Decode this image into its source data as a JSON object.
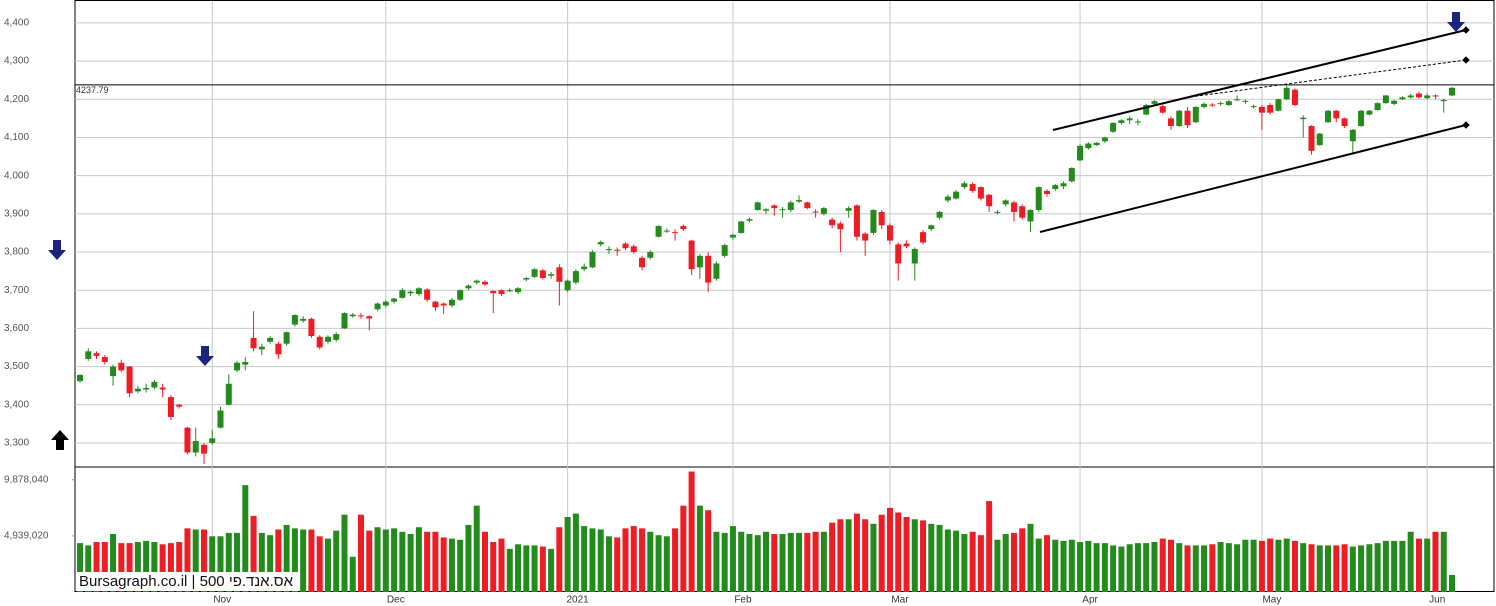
{
  "chart_data": {
    "type": "candlestick",
    "watermark": "Bursagraph.co.il | אס.אנד.פי 500",
    "categories": [
      null,
      null,
      null,
      null,
      null,
      null,
      null,
      null,
      null,
      null,
      null,
      null,
      null,
      null,
      null,
      null,
      "Nov",
      null,
      null,
      null,
      null,
      null,
      null,
      null,
      null,
      null,
      null,
      null,
      null,
      null,
      null,
      null,
      null,
      null,
      null,
      null,
      null,
      "Dec",
      null,
      null,
      null,
      null,
      null,
      null,
      null,
      null,
      null,
      null,
      null,
      null,
      null,
      null,
      null,
      null,
      null,
      null,
      null,
      null,
      null,
      "2021",
      null,
      null,
      null,
      null,
      null,
      null,
      null,
      null,
      null,
      null,
      null,
      null,
      null,
      null,
      null,
      null,
      null,
      null,
      null,
      "Feb",
      null,
      null,
      null,
      null,
      null,
      null,
      null,
      null,
      null,
      null,
      null,
      null,
      null,
      null,
      null,
      null,
      null,
      null,
      "Mar",
      null,
      null,
      null,
      null,
      null,
      null,
      null,
      null,
      null,
      null,
      null,
      null,
      null,
      null,
      null,
      null,
      null,
      null,
      null,
      null,
      null,
      null,
      "Apr",
      null,
      null,
      null,
      null,
      null,
      null,
      null,
      null,
      null,
      null,
      null,
      null,
      null,
      null,
      null,
      null,
      null,
      null,
      null,
      null,
      null,
      "May",
      null,
      null,
      null,
      null,
      null,
      null,
      null,
      null,
      null,
      null,
      null,
      null,
      null,
      null,
      null,
      null,
      null,
      null,
      null,
      "Jun",
      null,
      null,
      null
    ],
    "ohlc": [
      [
        3462,
        3480,
        3458,
        3478
      ],
      [
        3520,
        3548,
        3515,
        3540
      ],
      [
        3535,
        3540,
        3520,
        3528
      ],
      [
        3525,
        3530,
        3505,
        3512
      ],
      [
        3475,
        3505,
        3450,
        3500
      ],
      [
        3510,
        3518,
        3485,
        3490
      ],
      [
        3500,
        3502,
        3420,
        3430
      ],
      [
        3435,
        3450,
        3430,
        3442
      ],
      [
        3440,
        3455,
        3432,
        3444
      ],
      [
        3445,
        3465,
        3440,
        3460
      ],
      [
        3445,
        3455,
        3420,
        3440
      ],
      [
        3420,
        3425,
        3360,
        3368
      ],
      [
        3400,
        3402,
        3390,
        3395
      ],
      [
        3340,
        3342,
        3270,
        3275
      ],
      [
        3275,
        3340,
        3265,
        3305
      ],
      [
        3295,
        3300,
        3245,
        3272
      ],
      [
        3300,
        3335,
        3295,
        3312
      ],
      [
        3340,
        3395,
        3338,
        3385
      ],
      [
        3400,
        3480,
        3398,
        3455
      ],
      [
        3490,
        3515,
        3485,
        3510
      ],
      [
        3505,
        3525,
        3490,
        3512
      ],
      [
        3575,
        3645,
        3540,
        3548
      ],
      [
        3545,
        3560,
        3530,
        3552
      ],
      [
        3565,
        3580,
        3560,
        3575
      ],
      [
        3560,
        3565,
        3520,
        3532
      ],
      [
        3560,
        3592,
        3555,
        3590
      ],
      [
        3610,
        3637,
        3605,
        3635
      ],
      [
        3620,
        3632,
        3615,
        3625
      ],
      [
        3625,
        3628,
        3575,
        3580
      ],
      [
        3578,
        3582,
        3545,
        3550
      ],
      [
        3565,
        3582,
        3560,
        3578
      ],
      [
        3570,
        3590,
        3565,
        3585
      ],
      [
        3600,
        3642,
        3598,
        3640
      ],
      [
        3632,
        3640,
        3628,
        3636
      ],
      [
        3634,
        3640,
        3625,
        3632
      ],
      [
        3632,
        3634,
        3595,
        3626
      ],
      [
        3650,
        3668,
        3645,
        3665
      ],
      [
        3660,
        3675,
        3655,
        3670
      ],
      [
        3670,
        3680,
        3665,
        3678
      ],
      [
        3680,
        3705,
        3678,
        3700
      ],
      [
        3692,
        3700,
        3685,
        3696
      ],
      [
        3690,
        3708,
        3686,
        3705
      ],
      [
        3702,
        3705,
        3670,
        3675
      ],
      [
        3670,
        3672,
        3645,
        3655
      ],
      [
        3665,
        3668,
        3638,
        3660
      ],
      [
        3660,
        3680,
        3655,
        3675
      ],
      [
        3675,
        3702,
        3672,
        3700
      ],
      [
        3705,
        3715,
        3700,
        3712
      ],
      [
        3720,
        3728,
        3715,
        3725
      ],
      [
        3722,
        3726,
        3712,
        3715
      ],
      [
        3698,
        3700,
        3640,
        3692
      ],
      [
        3700,
        3702,
        3685,
        3690
      ],
      [
        3698,
        3705,
        3695,
        3700
      ],
      [
        3695,
        3708,
        3690,
        3705
      ],
      [
        3728,
        3735,
        3724,
        3732
      ],
      [
        3735,
        3758,
        3732,
        3755
      ],
      [
        3752,
        3755,
        3728,
        3732
      ],
      [
        3738,
        3748,
        3730,
        3742
      ],
      [
        3760,
        3768,
        3660,
        3722
      ],
      [
        3700,
        3728,
        3695,
        3725
      ],
      [
        3720,
        3755,
        3715,
        3750
      ],
      [
        3755,
        3770,
        3750,
        3762
      ],
      [
        3760,
        3805,
        3758,
        3800
      ],
      [
        3820,
        3830,
        3815,
        3826
      ],
      [
        3805,
        3815,
        3795,
        3808
      ],
      [
        3806,
        3812,
        3790,
        3804
      ],
      [
        3822,
        3826,
        3805,
        3810
      ],
      [
        3815,
        3820,
        3795,
        3800
      ],
      [
        3785,
        3790,
        3752,
        3760
      ],
      [
        3785,
        3805,
        3780,
        3800
      ],
      [
        3840,
        3870,
        3838,
        3868
      ],
      [
        3855,
        3862,
        3850,
        3856
      ],
      [
        3852,
        3860,
        3830,
        3850
      ],
      [
        3868,
        3872,
        3855,
        3860
      ],
      [
        3830,
        3832,
        3740,
        3755
      ],
      [
        3760,
        3795,
        3730,
        3790
      ],
      [
        3790,
        3800,
        3695,
        3720
      ],
      [
        3730,
        3775,
        3725,
        3770
      ],
      [
        3790,
        3822,
        3785,
        3818
      ],
      [
        3838,
        3848,
        3832,
        3845
      ],
      [
        3850,
        3882,
        3848,
        3880
      ],
      [
        3882,
        3890,
        3878,
        3886
      ],
      [
        3910,
        3932,
        3908,
        3930
      ],
      [
        3908,
        3915,
        3900,
        3912
      ],
      [
        3922,
        3925,
        3895,
        3915
      ],
      [
        3910,
        3918,
        3890,
        3912
      ],
      [
        3910,
        3935,
        3905,
        3930
      ],
      [
        3932,
        3948,
        3928,
        3936
      ],
      [
        3930,
        3932,
        3912,
        3915
      ],
      [
        3906,
        3912,
        3890,
        3904
      ],
      [
        3900,
        3918,
        3896,
        3915
      ],
      [
        3885,
        3890,
        3862,
        3870
      ],
      [
        3875,
        3880,
        3800,
        3860
      ],
      [
        3908,
        3920,
        3890,
        3915
      ],
      [
        3922,
        3925,
        3830,
        3840
      ],
      [
        3848,
        3852,
        3790,
        3830
      ],
      [
        3850,
        3912,
        3845,
        3910
      ],
      [
        3905,
        3910,
        3860,
        3870
      ],
      [
        3870,
        3875,
        3820,
        3830
      ],
      [
        3820,
        3825,
        3725,
        3770
      ],
      [
        3822,
        3830,
        3810,
        3815
      ],
      [
        3770,
        3812,
        3725,
        3808
      ],
      [
        3852,
        3858,
        3820,
        3825
      ],
      [
        3860,
        3872,
        3855,
        3870
      ],
      [
        3890,
        3908,
        3885,
        3905
      ],
      [
        3935,
        3950,
        3930,
        3945
      ],
      [
        3940,
        3962,
        3938,
        3958
      ],
      [
        3970,
        3985,
        3965,
        3980
      ],
      [
        3978,
        3982,
        3955,
        3960
      ],
      [
        3970,
        3972,
        3935,
        3940
      ],
      [
        3950,
        3952,
        3905,
        3920
      ],
      [
        3905,
        3910,
        3898,
        3905
      ],
      [
        3925,
        3938,
        3920,
        3935
      ],
      [
        3930,
        3934,
        3880,
        3905
      ],
      [
        3920,
        3925,
        3885,
        3890
      ],
      [
        3880,
        3912,
        3852,
        3910
      ],
      [
        3910,
        3972,
        3905,
        3970
      ],
      [
        3960,
        3964,
        3945,
        3952
      ],
      [
        3965,
        3978,
        3960,
        3975
      ],
      [
        3972,
        3985,
        3965,
        3980
      ],
      [
        3985,
        4022,
        3982,
        4020
      ],
      [
        4040,
        4082,
        4038,
        4078
      ],
      [
        4072,
        4088,
        4068,
        4084
      ],
      [
        4080,
        4088,
        4078,
        4086
      ],
      [
        4090,
        4102,
        4086,
        4100
      ],
      [
        4115,
        4140,
        4112,
        4138
      ],
      [
        4138,
        4148,
        4134,
        4145
      ],
      [
        4145,
        4155,
        4135,
        4150
      ],
      [
        4140,
        4148,
        4132,
        4142
      ],
      [
        4160,
        4188,
        4158,
        4185
      ],
      [
        4188,
        4198,
        4184,
        4195
      ],
      [
        4182,
        4185,
        4162,
        4165
      ],
      [
        4150,
        4155,
        4120,
        4130
      ],
      [
        4130,
        4172,
        4128,
        4170
      ],
      [
        4170,
        4180,
        4125,
        4132
      ],
      [
        4140,
        4182,
        4138,
        4180
      ],
      [
        4180,
        4192,
        4176,
        4188
      ],
      [
        4186,
        4190,
        4180,
        4185
      ],
      [
        4188,
        4194,
        4184,
        4190
      ],
      [
        4185,
        4198,
        4182,
        4195
      ],
      [
        4198,
        4210,
        4195,
        4200
      ],
      [
        4195,
        4200,
        4188,
        4196
      ],
      [
        4180,
        4186,
        4175,
        4182
      ],
      [
        4180,
        4185,
        4120,
        4165
      ],
      [
        4185,
        4190,
        4160,
        4165
      ],
      [
        4170,
        4202,
        4168,
        4200
      ],
      [
        4200,
        4235,
        4198,
        4230
      ],
      [
        4225,
        4228,
        4182,
        4185
      ],
      [
        4148,
        4158,
        4100,
        4152
      ],
      [
        4130,
        4132,
        4055,
        4065
      ],
      [
        4080,
        4112,
        4078,
        4110
      ],
      [
        4140,
        4172,
        4138,
        4170
      ],
      [
        4170,
        4172,
        4140,
        4150
      ],
      [
        4150,
        4152,
        4125,
        4130
      ],
      [
        4090,
        4122,
        4060,
        4120
      ],
      [
        4130,
        4172,
        4128,
        4170
      ],
      [
        4160,
        4172,
        4158,
        4170
      ],
      [
        4172,
        4192,
        4170,
        4190
      ],
      [
        4190,
        4212,
        4188,
        4210
      ],
      [
        4188,
        4198,
        4184,
        4196
      ],
      [
        4200,
        4208,
        4198,
        4205
      ],
      [
        4205,
        4214,
        4202,
        4210
      ],
      [
        4215,
        4220,
        4202,
        4205
      ],
      [
        4203,
        4215,
        4200,
        4210
      ],
      [
        4210,
        4213,
        4200,
        4208
      ],
      [
        4195,
        4202,
        4165,
        4198
      ],
      [
        4210,
        4232,
        4208,
        4230
      ]
    ],
    "volume": [
      4300000,
      4100000,
      4400000,
      4400000,
      5100000,
      4300000,
      4300000,
      4400000,
      4500000,
      4400000,
      4200000,
      4300000,
      4400000,
      5600000,
      5500000,
      5500000,
      4900000,
      4900000,
      5200000,
      5200000,
      9400000,
      6700000,
      5200000,
      5000000,
      5500000,
      5900000,
      5600000,
      5500000,
      5500000,
      4900000,
      4700000,
      5400000,
      6800000,
      3100000,
      6800000,
      5400000,
      5700000,
      5500000,
      5600000,
      5300000,
      5100000,
      5700000,
      5300000,
      5300000,
      4800000,
      4700000,
      4600000,
      5900000,
      7600000,
      5300000,
      4400000,
      4700000,
      3800000,
      4200000,
      4100000,
      4100000,
      4000000,
      3800000,
      5700000,
      6600000,
      6900000,
      5800000,
      5600000,
      5500000,
      4900000,
      4800000,
      5600000,
      5800000,
      5600000,
      5300000,
      5000000,
      4900000,
      5600000,
      7600000,
      10600000,
      7600000,
      7200000,
      5300000,
      5200000,
      5800000,
      5300000,
      5100000,
      5000000,
      5300000,
      5100000,
      5100000,
      5200000,
      5200000,
      5200000,
      5300000,
      5300000,
      6100000,
      6400000,
      6400000,
      6900000,
      6400000,
      6000000,
      6800000,
      7400000,
      7000000,
      6600000,
      6400000,
      6300000,
      6000000,
      5900000,
      5500000,
      5400000,
      5100000,
      5300000,
      5000000,
      8000000,
      4600000,
      5100000,
      5200000,
      5600000,
      6000000,
      4700000,
      5000000,
      4600000,
      4500000,
      4600000,
      4400000,
      4500000,
      4300000,
      4300000,
      4100000,
      4000000,
      4200000,
      4300000,
      4300000,
      4400000,
      4700000,
      4600000,
      4300000,
      4100000,
      4100000,
      4100000,
      4200000,
      4400000,
      4300000,
      4200000,
      4600000,
      4600000,
      4500000,
      4700000,
      4600000,
      4700000,
      4500000,
      4300000,
      4200000,
      4100000,
      4100000,
      4100000,
      4200000,
      4000000,
      4100000,
      4200000,
      4300000,
      4500000,
      4500000,
      4500000,
      5300000,
      4700000,
      4700000,
      5300000,
      5300000,
      1500000
    ],
    "up_color": "#238a1c",
    "down_color": "#ee1c24",
    "ylim": [
      3237,
      4460
    ],
    "yticks": [
      {
        "value": 3300,
        "label": "3,300"
      },
      {
        "value": 3400,
        "label": "3,400"
      },
      {
        "value": 3500,
        "label": "3,500"
      },
      {
        "value": 3600,
        "label": "3,600"
      },
      {
        "value": 3700,
        "label": "3,700"
      },
      {
        "value": 3800,
        "label": "3,800"
      },
      {
        "value": 3900,
        "label": "3,900"
      },
      {
        "value": 4000,
        "label": "4,000"
      },
      {
        "value": 4100,
        "label": "4,100"
      },
      {
        "value": 4200,
        "label": "4,200"
      },
      {
        "value": 4300,
        "label": "4,300"
      },
      {
        "value": 4400,
        "label": "4,400"
      }
    ],
    "volume_ylim": [
      0,
      11000000
    ],
    "volume_yticks": [
      {
        "value": 4939020,
        "label": "4,939,020"
      },
      {
        "value": 9878040,
        "label": "9,878,040"
      }
    ],
    "hline": 4237.79,
    "grid": true
  }
}
